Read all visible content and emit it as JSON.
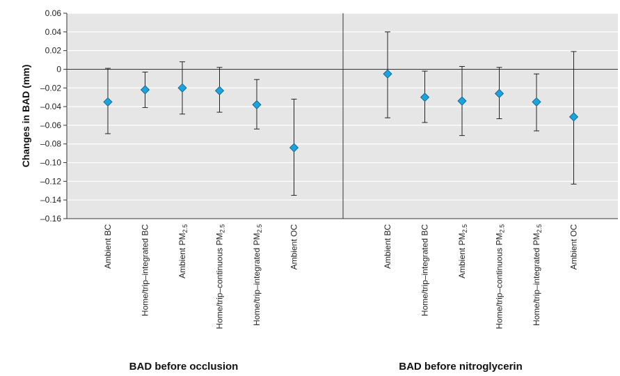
{
  "chart_data": {
    "type": "scatter",
    "ylabel": "Changes in BAD (mm)",
    "ylim": [
      -0.16,
      0.06
    ],
    "yticks": [
      "0.06",
      "0.04",
      "0.02",
      "0",
      "–0.02",
      "–0.04",
      "–0.06",
      "–0.08",
      "–0.10",
      "–0.12",
      "–0.14",
      "–0.16"
    ],
    "ytick_values": [
      0.06,
      0.04,
      0.02,
      0,
      -0.02,
      -0.04,
      -0.06,
      -0.08,
      -0.1,
      -0.12,
      -0.14,
      -0.16
    ],
    "grid": true,
    "marker_color": "#1aa3dc",
    "panel_background": "#e6e6e6",
    "panels": [
      {
        "title": "BAD before occlusion",
        "points": [
          {
            "label": "Ambient BC",
            "sub": "",
            "estimate": -0.035,
            "lower": -0.069,
            "upper": 0.001
          },
          {
            "label": "Home/trip–integrated BC",
            "sub": "",
            "estimate": -0.022,
            "lower": -0.041,
            "upper": -0.003
          },
          {
            "label": "Ambient PM",
            "sub": "2.5",
            "estimate": -0.02,
            "lower": -0.048,
            "upper": 0.008
          },
          {
            "label": "Home/trip–continuous PM",
            "sub": "2.5",
            "estimate": -0.023,
            "lower": -0.046,
            "upper": 0.002
          },
          {
            "label": "Home/trip–integrated PM",
            "sub": "2.5",
            "estimate": -0.038,
            "lower": -0.064,
            "upper": -0.011
          },
          {
            "label": "Ambient OC",
            "sub": "",
            "estimate": -0.084,
            "lower": -0.135,
            "upper": -0.032
          }
        ]
      },
      {
        "title": "BAD before nitroglycerin",
        "points": [
          {
            "label": "Ambient BC",
            "sub": "",
            "estimate": -0.005,
            "lower": -0.052,
            "upper": 0.04
          },
          {
            "label": "Home/trip–integrated BC",
            "sub": "",
            "estimate": -0.03,
            "lower": -0.057,
            "upper": -0.002
          },
          {
            "label": "Ambient PM",
            "sub": "2.5",
            "estimate": -0.034,
            "lower": -0.071,
            "upper": 0.003
          },
          {
            "label": "Home/trip–continuous PM",
            "sub": "2.5",
            "estimate": -0.026,
            "lower": -0.053,
            "upper": 0.002
          },
          {
            "label": "Home/trip–integrated PM",
            "sub": "2.5",
            "estimate": -0.035,
            "lower": -0.066,
            "upper": -0.005
          },
          {
            "label": "Ambient OC",
            "sub": "",
            "estimate": -0.051,
            "lower": -0.123,
            "upper": 0.019
          }
        ]
      }
    ]
  }
}
